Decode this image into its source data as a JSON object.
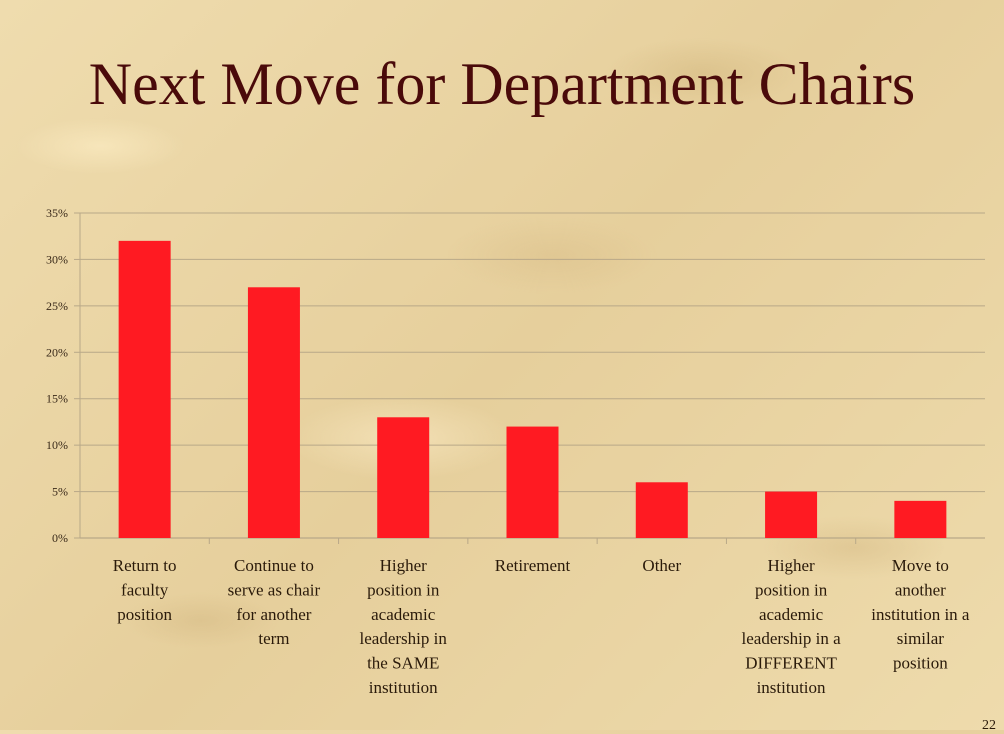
{
  "slide": {
    "title": "Next Move for Department Chairs",
    "page_number": "22"
  },
  "colors": {
    "bar": "#ff1a22",
    "title": "#4a0a0a",
    "grid": "#b8a888"
  },
  "chart_data": {
    "type": "bar",
    "title": "",
    "xlabel": "",
    "ylabel": "",
    "ylim": [
      0,
      35
    ],
    "y_ticks": [
      "0%",
      "5%",
      "10%",
      "15%",
      "20%",
      "25%",
      "30%",
      "35%"
    ],
    "grid": true,
    "legend": "none",
    "categories": [
      "Return to faculty position",
      "Continue to serve as chair for another term",
      "Higher position in academic leadership in the SAME institution",
      "Retirement",
      "Other",
      "Higher position in academic leadership in a DIFFERENT institution",
      "Move to another institution in a similar position"
    ],
    "category_lines": [
      [
        "Return to",
        "faculty",
        "position"
      ],
      [
        "Continue to",
        "serve as chair",
        "for another",
        "term"
      ],
      [
        "Higher",
        "position in",
        "academic",
        "leadership in",
        "the SAME",
        "institution"
      ],
      [
        "Retirement"
      ],
      [
        "Other"
      ],
      [
        "Higher",
        "position in",
        "academic",
        "leadership in a",
        "DIFFERENT",
        "institution"
      ],
      [
        "Move to",
        "another",
        "institution in a",
        "similar",
        "position"
      ]
    ],
    "values": [
      32,
      27,
      13,
      12,
      6,
      5,
      4
    ]
  }
}
